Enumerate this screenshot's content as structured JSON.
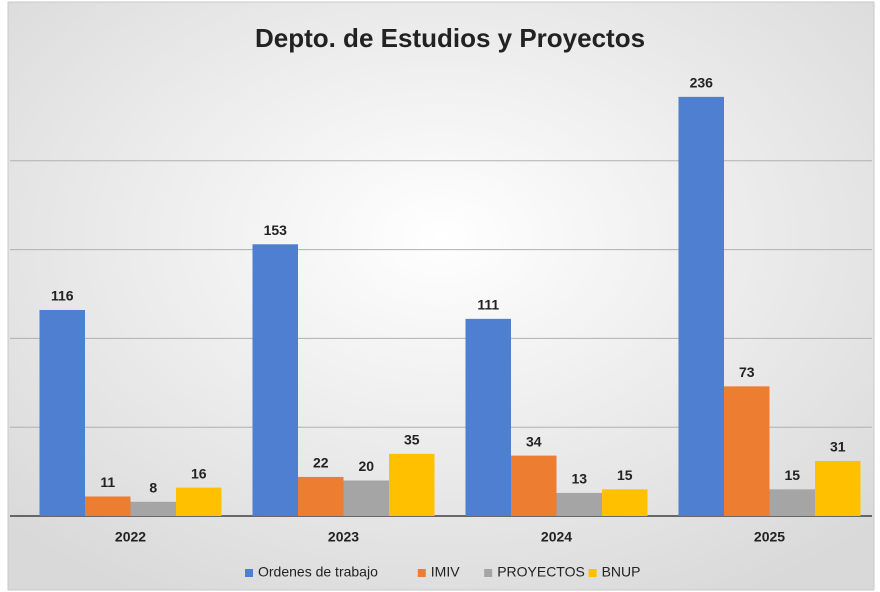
{
  "chart_data": {
    "type": "bar",
    "title": "Depto. de Estudios y Proyectos",
    "categories": [
      "2022",
      "2023",
      "2024",
      "2025"
    ],
    "series": [
      {
        "name": "Ordenes de trabajo",
        "color": "#4f7fd0",
        "values": [
          116,
          153,
          111,
          236
        ]
      },
      {
        "name": "IMIV",
        "color": "#ed7d31",
        "values": [
          11,
          22,
          34,
          73
        ]
      },
      {
        "name": "PROYECTOS",
        "color": "#a5a5a5",
        "values": [
          8,
          20,
          13,
          15
        ]
      },
      {
        "name": "BNUP",
        "color": "#ffc000",
        "values": [
          16,
          35,
          15,
          31
        ]
      }
    ],
    "ylim": [
      0,
      250
    ],
    "yticks": [
      0,
      50,
      100,
      150,
      200
    ],
    "grid": true,
    "legend": "bottom"
  }
}
